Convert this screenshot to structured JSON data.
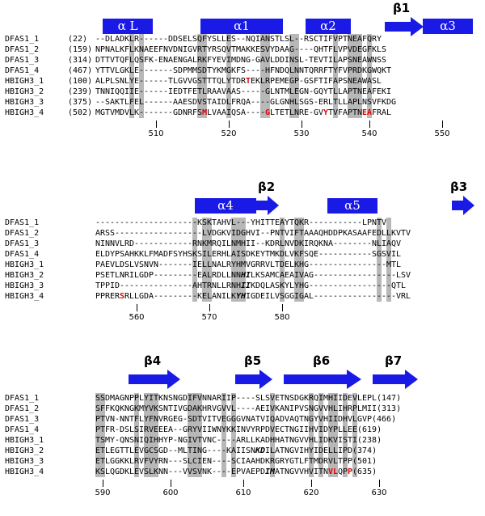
{
  "blocks": [
    {
      "id": "b1",
      "top": 42,
      "helix_elements": [
        {
          "label": "α L"
        },
        {
          "label": "α1"
        },
        {
          "label": "α2"
        },
        {
          "label": "α3"
        }
      ],
      "strand_elements": [
        {
          "label": "β1"
        }
      ],
      "rows": [
        {
          "name": "DFAS1_1",
          "num": "(22)",
          "seq": "--DLADKLR------DDSELSQFYSLLES--NQIANSTLSL--RSCTIFVPTNEAFQRY"
        },
        {
          "name": "DFAS1_2",
          "num": "(159)",
          "seq": "NPNALKFLKNAEEFNVDNIGVRTYRSQVTMAKKESVYDAAG----QHTFLVPVDEGFKLS"
        },
        {
          "name": "DFAS1_3",
          "num": "(314)",
          "seq": "DTTVTQFLQSFK-ENAENGALRKFYEVIMDNG-GAVLDDINSL-TEVTILAPSNEAWNSS"
        },
        {
          "name": "DFAS1_4",
          "num": "(467)",
          "seq": "YTTVLGKLE-------SDPMMSDTYKMGKFS----HFNDQLNNTQRRFTYFVPRDKGWQKT"
        },
        {
          "name": "HBIGH3_1",
          "num": "(100)",
          "seq": "ALPLSNLYE------TLGVVGSTTTQLYTDRTEKLRPEMEGP-GSFTIFAPSNEAWASL"
        },
        {
          "name": "HBIGH3_2",
          "num": "(239)",
          "seq": "TNNIQQIIE------IEDTFETLRAAVAAS-----GLNTMLEGN-GQYTLLAPTNEAFEKI"
        },
        {
          "name": "HBIGH3_3",
          "num": "(375)",
          "seq": "--SAKTLFEL------AAESDVSTAIDLFRQA----GLGNHLSGS-ERLTLLAPLNSVFKDG"
        },
        {
          "name": "HBIGH3_4",
          "num": "(502)",
          "seq": "MGTVMDVLK-------GDNRFSMLVAAIQSA----GLTETLNRE-GVYTVFAPTNEAFRAL"
        }
      ],
      "ticks": [
        {
          "label": "510"
        },
        {
          "label": "520"
        },
        {
          "label": "530"
        },
        {
          "label": "540"
        },
        {
          "label": "550"
        }
      ]
    },
    {
      "id": "b2",
      "top": 269,
      "helix_elements": [
        {
          "label": "α4"
        },
        {
          "label": "α5"
        }
      ],
      "strand_elements": [
        {
          "label": "β2"
        },
        {
          "label": "β3"
        }
      ],
      "rows": [
        {
          "name": "DFAS1_1",
          "num": "",
          "seq": "---------------------KSKTAHVL---YHITTEAYTQKR-----------LPNTV"
        },
        {
          "name": "DFAS1_2",
          "num": "",
          "seq": "ARSS------------------LVDGKVIDGHVI--PNTVIFTAAAQHDDPKASAAFEDLLKVTV"
        },
        {
          "name": "DFAS1_3",
          "num": "",
          "seq": "NINNVLRD------------RNKMRQILNMHII--KDRLNVDKIRQKNA--------NLIAQV"
        },
        {
          "name": "DFAS1_4",
          "num": "",
          "seq": "ELDYPSAHKKLFMADFSYHSKSILERHLAISDKEYTMKDLVKFSQE-----------SGSVIL"
        },
        {
          "name": "HBIGH3_1",
          "num": "",
          "seq": "PAEVLDSLVSNVN-------IELLNALRYHMVGRRVLTDELKHG----------------MTL"
        },
        {
          "name": "HBIGH3_2",
          "num": "",
          "seq": "PSETLNRILGDP---------EALRDLLNNHILKSAMCAEAIVAG-----------------LSV"
        },
        {
          "name": "HBIGH3_3",
          "num": "",
          "seq": "TPPID---------------AHTRNLLRNHIIKDQLASKYLYHG-----------------QTL"
        },
        {
          "name": "HBIGH3_4",
          "num": "",
          "seq": "PPRERSRLLGDA---------KELANILKYHIGDEILVSGGIGAL-----------------VRL"
        }
      ],
      "ticks": [
        {
          "label": "560"
        },
        {
          "label": "570"
        },
        {
          "label": "580"
        }
      ]
    },
    {
      "id": "b3",
      "top": 486,
      "helix_elements": [],
      "strand_elements": [
        {
          "label": "β4"
        },
        {
          "label": "β5"
        },
        {
          "label": "β6"
        },
        {
          "label": "β7"
        }
      ],
      "rows": [
        {
          "name": "DFAS1_1",
          "num": "(147)",
          "seq": "SSDMAGNPPLYITKNSNGDIFVNNARIIP----SLSVETNSDGKRQIMHIIDEVLEPL"
        },
        {
          "name": "DFAS1_2",
          "num": "(313)",
          "seq": "SFFKQKNGKMYVKSNTIVGDAKHRVGVVL----AEIVKANIPVSNGVVHLIHRPLMII"
        },
        {
          "name": "DFAS1_3",
          "num": "(466)",
          "seq": "PTVN-NNTFLYFNVRGEG-SDTVITVEGGGVNATVIQADVAQTNGYVHIIDHVLGVP"
        },
        {
          "name": "DFAS1_4",
          "num": "(619)",
          "seq": "PTFR-DSLSIRVEEEA--GRYVIIWNYKKINVYRPDVECTNGIIHVIDYPLLEE"
        },
        {
          "name": "HBIGH3_1",
          "num": "(238)",
          "seq": "TSMY-QNSNIQIHHYP-NGIVTVNC----ARLLKADHHATNGVVHLIDKVISTI"
        },
        {
          "name": "HBIGH3_2",
          "num": "(374)",
          "seq": "ETLEGTTLEVGCSGD--MLTING----KAIISNKDILATNGVIHYIDELLIPD"
        },
        {
          "name": "HBIGH3_3",
          "num": "(501)",
          "seq": "ETLGGKKLRVFVYRN---SLCIEN----SCIAAHDKRGRYGTLFTMDRVLTPP"
        },
        {
          "name": "HBIGH3_4",
          "num": "(635)",
          "seq": "KSLQGDKLEVSLKNN---VVSVNK----EPVAEPDIMATNGVVHVITNVLQPP"
        }
      ],
      "ticks": [
        {
          "label": "590"
        },
        {
          "label": "600"
        },
        {
          "label": "610"
        },
        {
          "label": "620"
        },
        {
          "label": "630"
        }
      ]
    }
  ]
}
